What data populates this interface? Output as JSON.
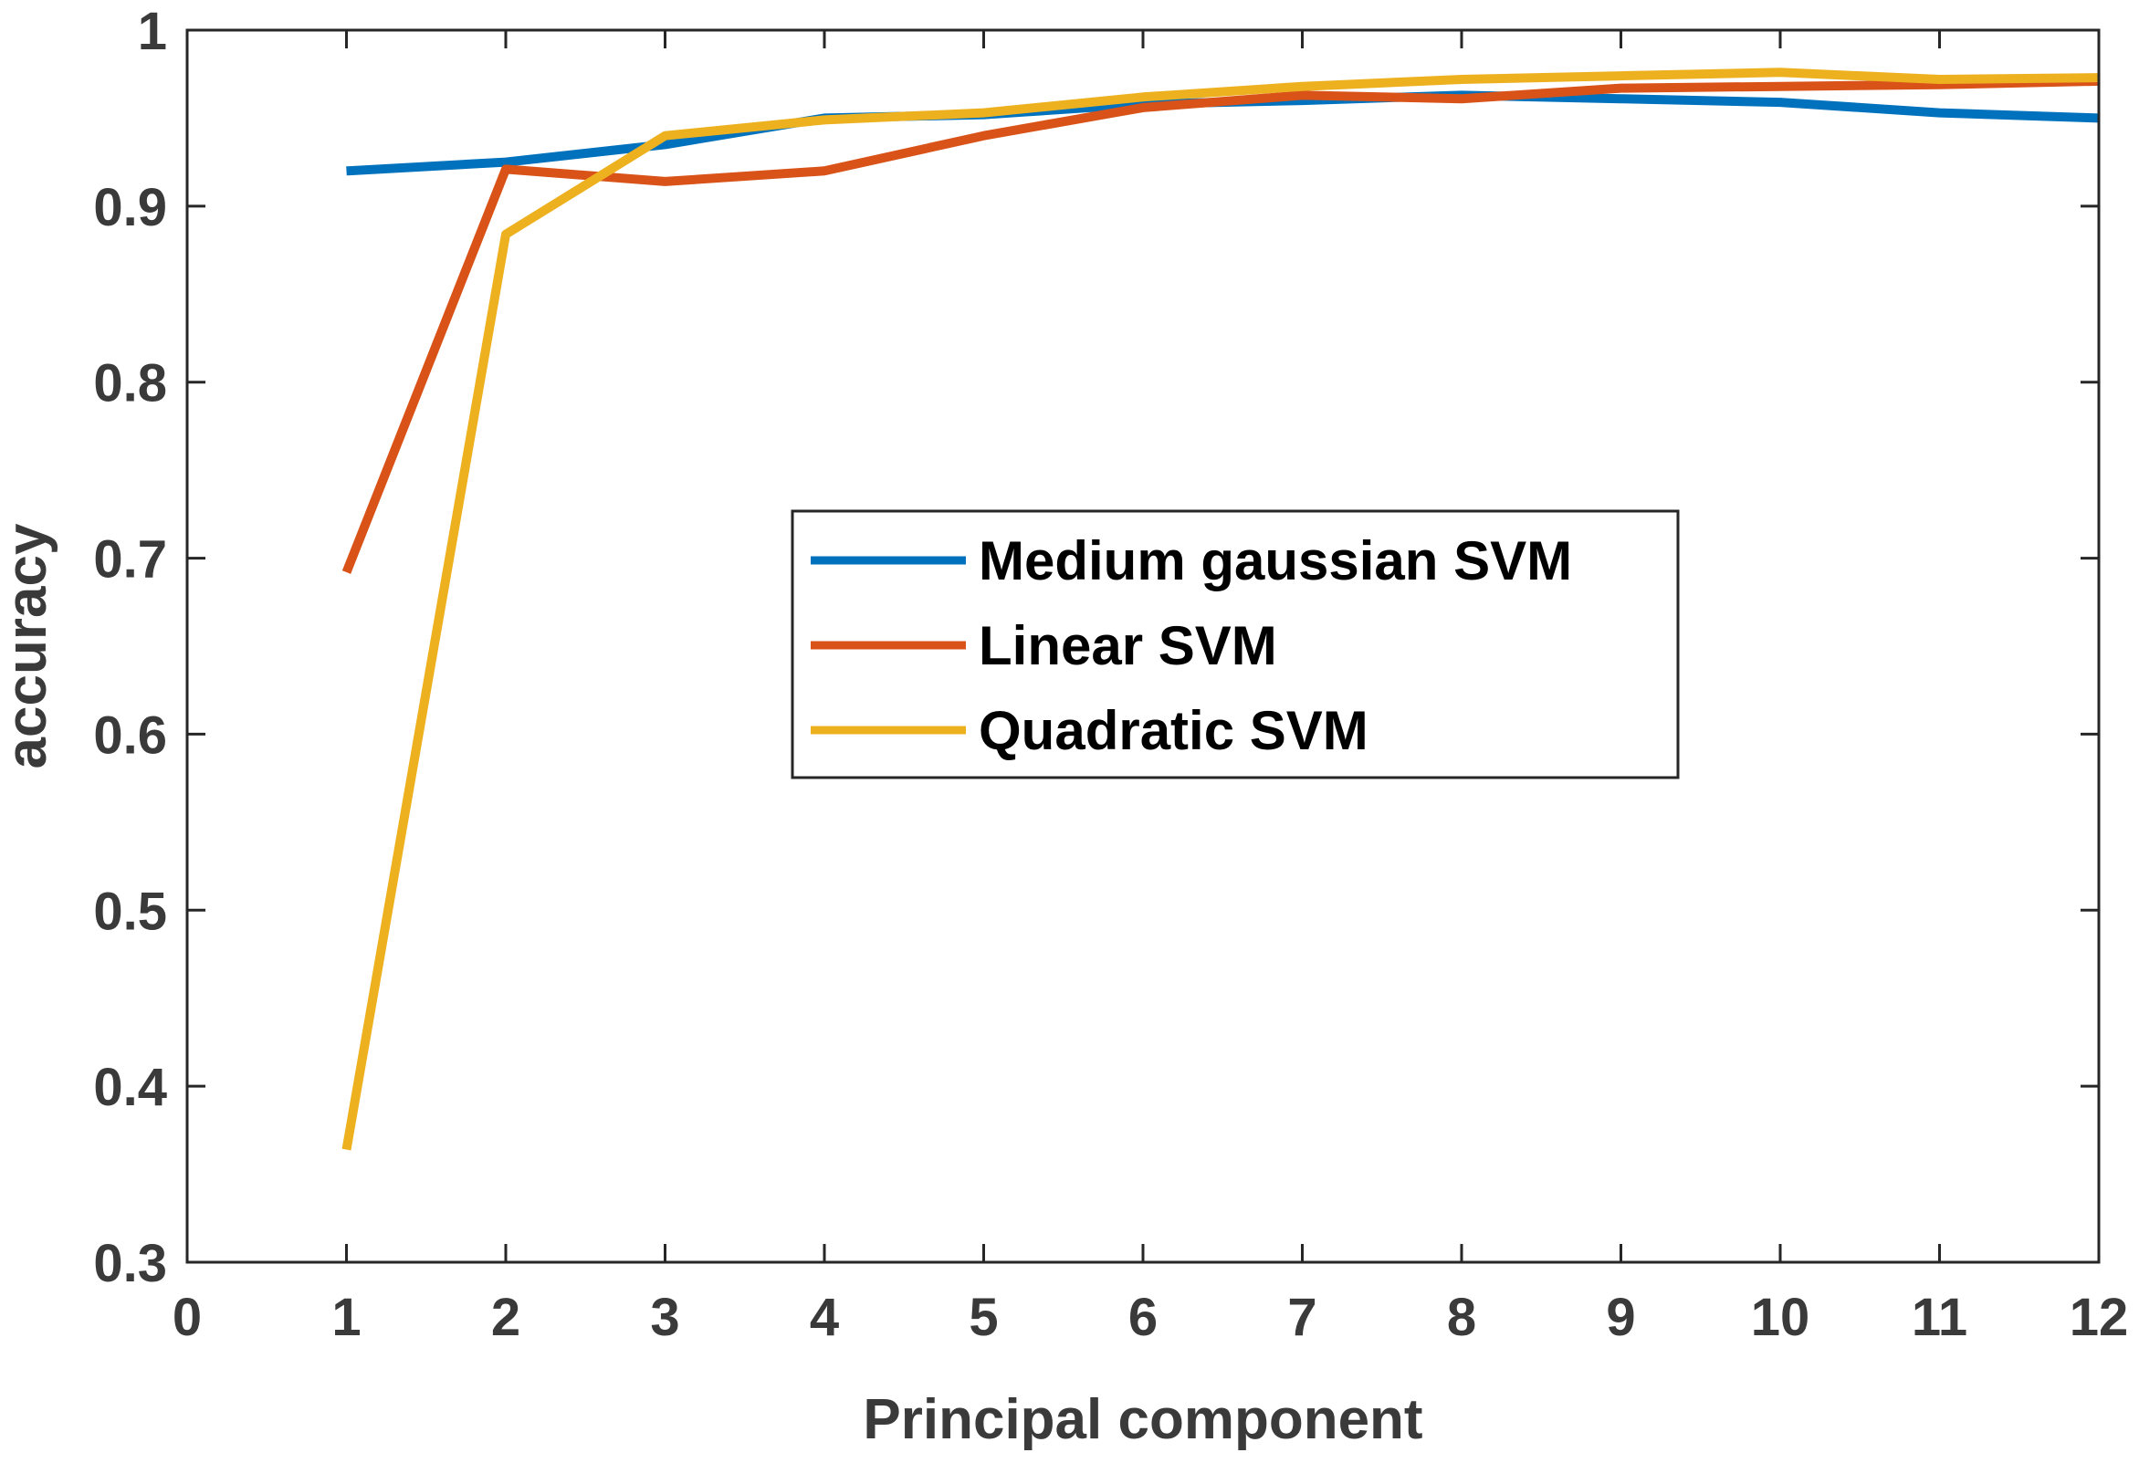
{
  "chart_data": {
    "type": "line",
    "title": "",
    "xlabel": "Principal component",
    "ylabel": "accuracy",
    "xlim": [
      0,
      12
    ],
    "ylim": [
      0.3,
      1
    ],
    "xticks": [
      0,
      1,
      2,
      3,
      4,
      5,
      6,
      7,
      8,
      9,
      10,
      11,
      12
    ],
    "yticks": [
      0.3,
      0.4,
      0.5,
      0.6,
      0.7,
      0.8,
      0.9,
      1
    ],
    "xtick_labels": [
      "0",
      "1",
      "2",
      "3",
      "4",
      "5",
      "6",
      "7",
      "8",
      "9",
      "10",
      "11",
      "12"
    ],
    "ytick_labels": [
      "0.3",
      "0.4",
      "0.5",
      "0.6",
      "0.7",
      "0.8",
      "0.9",
      "1"
    ],
    "grid": false,
    "legend_position": "center-right",
    "x": [
      1,
      2,
      3,
      4,
      5,
      6,
      7,
      8,
      9,
      10,
      11,
      12
    ],
    "series": [
      {
        "name": "Medium gaussian SVM",
        "color": "#0072BD",
        "values": [
          0.92,
          0.925,
          0.935,
          0.95,
          0.952,
          0.958,
          0.96,
          0.963,
          0.961,
          0.959,
          0.953,
          0.95
        ]
      },
      {
        "name": "Linear SVM",
        "color": "#D95319",
        "values": [
          0.692,
          0.921,
          0.914,
          0.92,
          0.94,
          0.956,
          0.963,
          0.961,
          0.967,
          0.968,
          0.969,
          0.971
        ]
      },
      {
        "name": "Quadratic SVM",
        "color": "#EDB120",
        "values": [
          0.364,
          0.884,
          0.94,
          0.949,
          0.953,
          0.962,
          0.968,
          0.972,
          0.974,
          0.976,
          0.972,
          0.973
        ]
      }
    ]
  }
}
